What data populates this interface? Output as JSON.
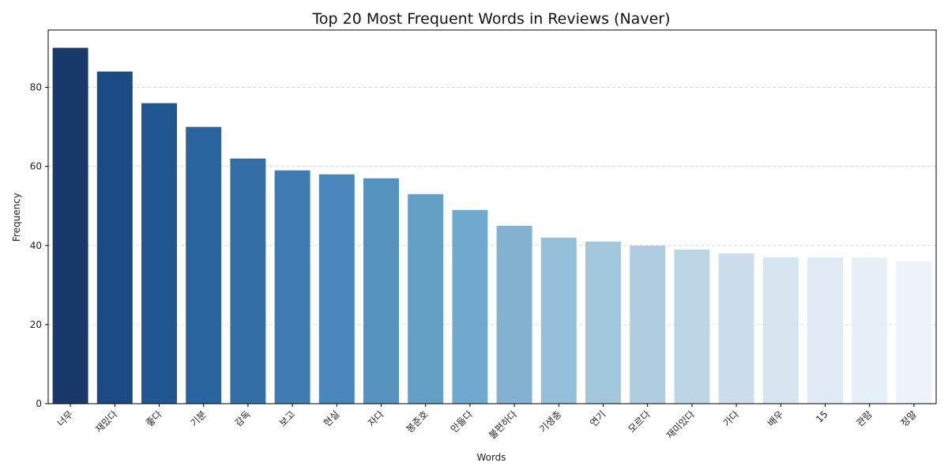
{
  "chart_data": {
    "type": "bar",
    "title": "Top 20 Most Frequent Words in Reviews (Naver)",
    "xlabel": "Words",
    "ylabel": "Frequency",
    "ylim": [
      0,
      94.5
    ],
    "yticks": [
      0,
      20,
      40,
      60,
      80
    ],
    "grid": "y-dashed",
    "categories": [
      "너무",
      "재밌다",
      "좋다",
      "기분",
      "감독",
      "보고",
      "현실",
      "자다",
      "봉준호",
      "만들다",
      "불편하다",
      "기생충",
      "연기",
      "모르다",
      "재미있다",
      "가다",
      "배우",
      "15",
      "관람",
      "정말"
    ],
    "values": [
      90,
      84,
      76,
      70,
      62,
      59,
      58,
      57,
      53,
      49,
      45,
      42,
      41,
      40,
      39,
      38,
      37,
      37,
      37,
      36
    ],
    "colors": [
      "#19396b",
      "#1a4b84",
      "#205791",
      "#29649f",
      "#336fa5",
      "#3d7bb0",
      "#4886bc",
      "#5692be",
      "#639fc4",
      "#70a9ce",
      "#83b2d0",
      "#94bfd9",
      "#a2c6da",
      "#afcde0",
      "#bdd6e6",
      "#ccdeec",
      "#d6e4ef",
      "#e0eaf4",
      "#e6eef6",
      "#edf3f9"
    ]
  }
}
